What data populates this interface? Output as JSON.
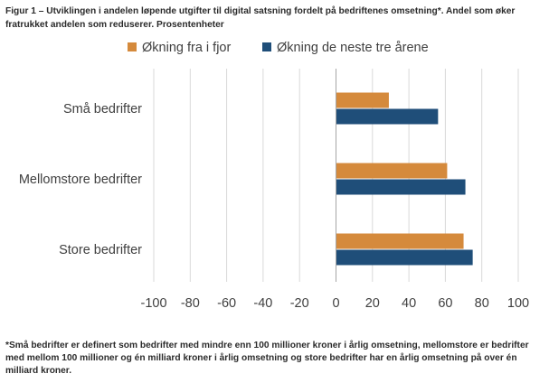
{
  "title": "Figur 1 – Utviklingen i andelen løpende utgifter til digital satsning fordelt på bedriftenes omsetning*. Andel som øker fratrukket andelen som reduserer. Prosentenheter",
  "footnote": "*Små bedrifter er definert som bedrifter med mindre enn 100 millioner kroner i årlig omsetning, mellomstore er bedrifter med mellom 100 millioner og én milliard kroner i årlig omsetning og store bedrifter har en årlig omsetning på over én milliard kroner.",
  "colors": {
    "series1": "#D58A3C",
    "series2": "#1F4E79",
    "grid": "#D9D9D9",
    "axis": "#A6A6A6",
    "text": "#404040"
  },
  "chart_data": {
    "type": "bar",
    "orientation": "horizontal",
    "title": "Figur 1 – Utviklingen i andelen løpende utgifter til digital satsning fordelt på bedriftenes omsetning*. Andel som øker fratrukket andelen som reduserer. Prosentenheter",
    "categories": [
      "Små bedrifter",
      "Mellomstore bedrifter",
      "Store bedrifter"
    ],
    "series": [
      {
        "name": "Økning fra i fjor",
        "values": [
          29,
          61,
          70
        ]
      },
      {
        "name": "Økning de neste tre årene",
        "values": [
          56,
          71,
          75
        ]
      }
    ],
    "xlim": [
      -100,
      100
    ],
    "xticks": [
      -100,
      -80,
      -60,
      -40,
      -20,
      0,
      20,
      40,
      60,
      80,
      100
    ],
    "xlabel": "",
    "ylabel": "",
    "grid": true,
    "legend": "top"
  }
}
